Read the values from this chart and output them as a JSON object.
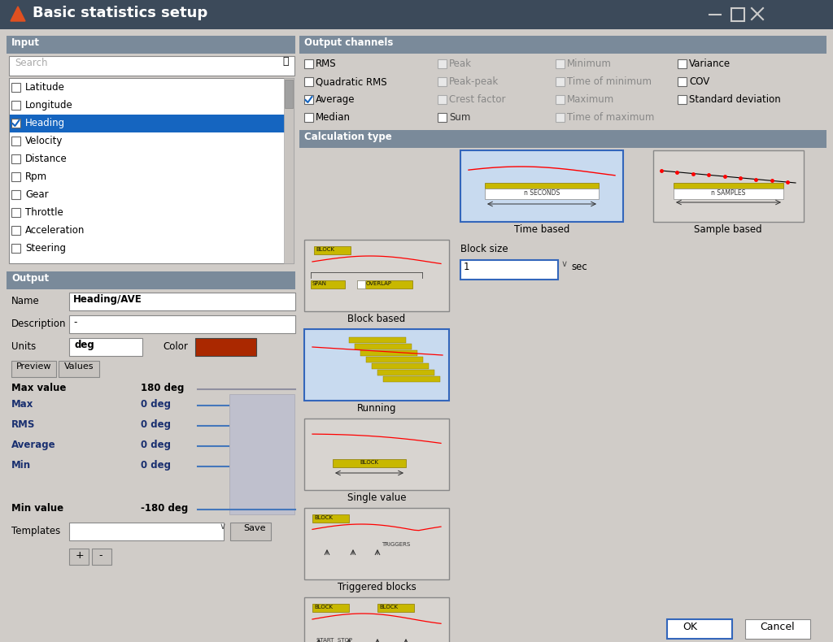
{
  "title": "Basic statistics setup",
  "title_bar_color": "#3c4a5a",
  "title_text_color": "#ffffff",
  "title_icon_color": "#e05020",
  "panel_bg": "#d0ccc8",
  "section_header_color": "#7a8a9a",
  "section_text_color": "#ffffff",
  "white": "#ffffff",
  "blue_selected_row": "#1565c0",
  "light_blue_box": "#c8daef",
  "gray_box": "#d8d4d0",
  "input_items": [
    "Latitude",
    "Longitude",
    "Heading",
    "Velocity",
    "Distance",
    "Rpm",
    "Gear",
    "Throttle",
    "Acceleration",
    "Steering"
  ],
  "checked_items": [
    "Heading"
  ],
  "oc_col1": [
    "RMS",
    "Quadratic RMS",
    "Average",
    "Median"
  ],
  "oc_col1_checked": [
    "Average"
  ],
  "oc_col2": [
    "Peak",
    "Peak-peak",
    "Crest factor",
    "Sum"
  ],
  "oc_col2_checked": [],
  "oc_col2_enabled": [
    false,
    false,
    false,
    true
  ],
  "oc_col3": [
    "Minimum",
    "Time of minimum",
    "Maximum",
    "Time of maximum"
  ],
  "oc_col3_checked": [],
  "oc_col3_enabled": [
    false,
    false,
    false,
    false
  ],
  "oc_col4": [
    "Variance",
    "COV",
    "Standard deviation"
  ],
  "oc_col4_checked": [],
  "name_value": "Heading/AVE",
  "units_value": "deg",
  "color_value": "#aa2800",
  "max_value": "180 deg",
  "min_value": "-180 deg",
  "stats": [
    [
      "Max",
      "0 deg"
    ],
    [
      "RMS",
      "0 deg"
    ],
    [
      "Average",
      "0 deg"
    ],
    [
      "Min",
      "0 deg"
    ]
  ],
  "block_size": "1",
  "block_size_unit": "sec",
  "yellow_bar": "#c8b800",
  "dark_yellow": "#8a7a00"
}
